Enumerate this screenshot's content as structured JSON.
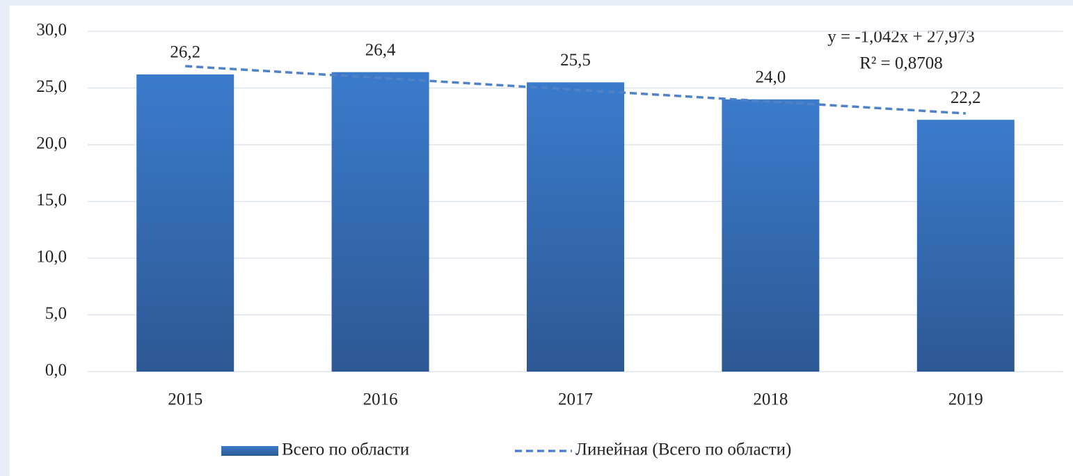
{
  "chart_data": {
    "type": "bar",
    "categories": [
      "2015",
      "2016",
      "2017",
      "2018",
      "2019"
    ],
    "series": [
      {
        "name": "Всего по области",
        "color": "#3b7bcc",
        "values": [
          26.2,
          26.4,
          25.5,
          24.0,
          22.2
        ],
        "value_labels": [
          "26,2",
          "26,4",
          "25,5",
          "24,0",
          "22,2"
        ]
      },
      {
        "name": "Линейная (Всего по области)",
        "type": "trendline",
        "color": "#4f82c6",
        "values": [
          26.93,
          25.89,
          24.85,
          23.81,
          22.76
        ]
      }
    ],
    "annotations": [
      "y = -1,042x + 27,973",
      "R² = 0,8708"
    ],
    "ylim": [
      0,
      30
    ],
    "yticks": [
      {
        "value": 0,
        "label": "0,0"
      },
      {
        "value": 5,
        "label": "5,0"
      },
      {
        "value": 10,
        "label": "10,0"
      },
      {
        "value": 15,
        "label": "15,0"
      },
      {
        "value": 20,
        "label": "20,0"
      },
      {
        "value": 25,
        "label": "25,0"
      },
      {
        "value": 30,
        "label": "30,0"
      }
    ],
    "grid": true,
    "legend": "bottom"
  }
}
